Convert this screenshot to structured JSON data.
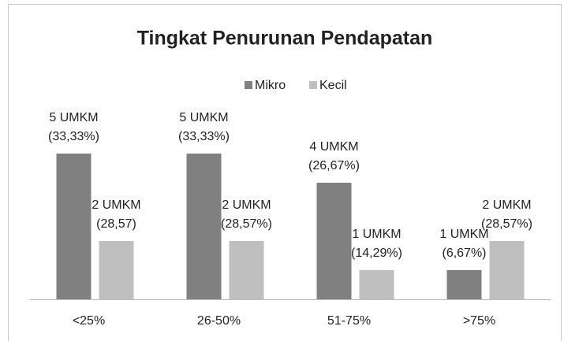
{
  "chart_data": {
    "type": "bar",
    "title": "Tingkat Penurunan Pendapatan",
    "categories": [
      "<25%",
      "26-50%",
      "51-75%",
      ">75%"
    ],
    "series": [
      {
        "name": "Mikro",
        "color": "#808080",
        "values": [
          5,
          5,
          4,
          1
        ],
        "value_labels": [
          [
            "5 UMKM",
            "(33,33%)"
          ],
          [
            "5 UMKM",
            "(33,33%)"
          ],
          [
            "4 UMKM",
            "(26,67%)"
          ],
          [
            "1 UMKM",
            "(6,67%)"
          ]
        ]
      },
      {
        "name": "Kecil",
        "color": "#bfbfbf",
        "values": [
          2,
          2,
          1,
          2
        ],
        "value_labels": [
          [
            "2 UMKM",
            "(28,57)"
          ],
          [
            "2 UMKM",
            "(28,57%)"
          ],
          [
            "1 UMKM",
            "(14,29%)"
          ],
          [
            "2 UMKM",
            "(28,57%)"
          ]
        ]
      }
    ],
    "legend": "top"
  }
}
